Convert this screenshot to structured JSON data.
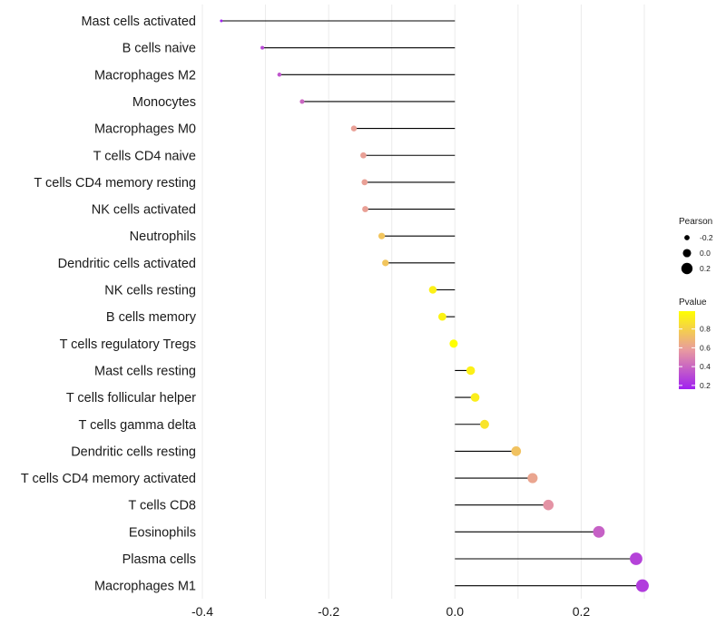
{
  "chart_data": {
    "type": "lollipop",
    "xlim": [
      -0.4,
      0.3
    ],
    "xticks": [
      -0.4,
      -0.2,
      0.0,
      0.2
    ],
    "xtick_labels": [
      "-0.4",
      "-0.2",
      "0.0",
      "0.2"
    ],
    "categories": [
      "Mast cells activated",
      "B cells naive",
      "Macrophages M2",
      "Monocytes",
      "Macrophages M0",
      "T cells CD4 naive",
      "T cells CD4 memory resting",
      "NK cells activated",
      "Neutrophils",
      "Dendritic cells activated",
      "NK cells resting",
      "B cells memory",
      "T cells regulatory  Tregs ",
      "Mast cells resting",
      "T cells follicular helper",
      "T cells gamma delta",
      "Dendritic cells resting",
      "T cells CD4 memory activated",
      "T cells CD8",
      "Eosinophils",
      "Plasma cells",
      "Macrophages M1"
    ],
    "pearson": [
      -0.37,
      -0.305,
      -0.278,
      -0.242,
      -0.16,
      -0.145,
      -0.143,
      -0.142,
      -0.116,
      -0.11,
      -0.035,
      -0.02,
      -0.002,
      0.025,
      0.032,
      0.047,
      0.097,
      0.123,
      0.148,
      0.228,
      0.287,
      0.297
    ],
    "pvalue": [
      0.16,
      0.3,
      0.34,
      0.4,
      0.6,
      0.6,
      0.6,
      0.6,
      0.75,
      0.75,
      0.93,
      0.94,
      0.99,
      0.93,
      0.92,
      0.88,
      0.74,
      0.62,
      0.55,
      0.38,
      0.28,
      0.26
    ],
    "legend_size": {
      "title": "Pearson",
      "values": [
        -0.2,
        0.0,
        0.2
      ],
      "labels": [
        "-0.2",
        "0.0",
        "0.2"
      ]
    },
    "legend_color": {
      "title": "Pvalue",
      "values": [
        0.2,
        0.4,
        0.6,
        0.8
      ],
      "labels": [
        "0.2",
        "0.4",
        "0.6",
        "0.8"
      ],
      "range": [
        0.16,
        0.99
      ],
      "low_color": "#a020f0",
      "mid_color": "#e89aa0",
      "high_color": "#ffff00"
    },
    "legend_position": "right",
    "grid": true
  }
}
